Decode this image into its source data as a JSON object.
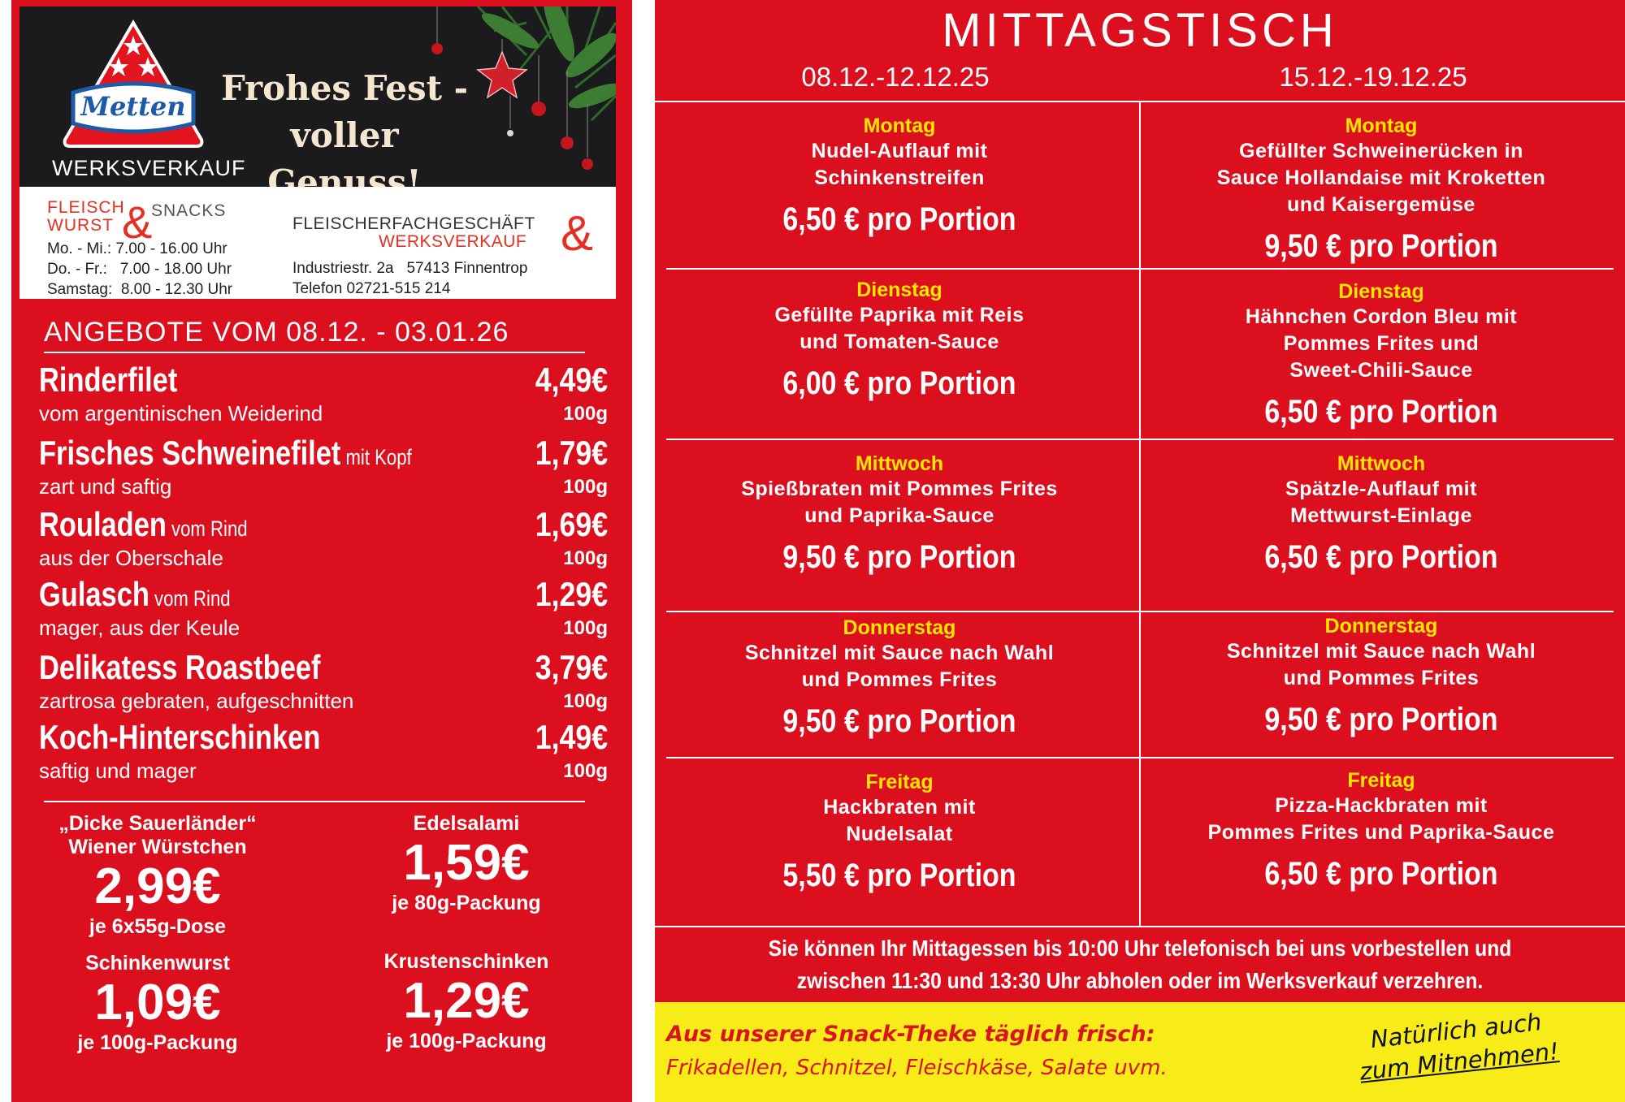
{
  "header": {
    "logo_text": "Metten",
    "logo_subtitle": "WERKSVERKAUF",
    "slogan_line1": "Frohes Fest -",
    "slogan_line2": "voller Genuss!",
    "fws_fleisch": "FLEISCH",
    "fws_wurst": "WURST",
    "fws_amp": "&",
    "fws_snacks": "SNACKS",
    "hours": [
      "Mo. - Mi.: 7.00 - 16.00 Uhr",
      "Do. - Fr.:   7.00 - 18.00 Uhr",
      "Samstag:  8.00 - 12.30 Uhr"
    ],
    "shop_line1": "FLEISCHERFACHGESCHÄFT",
    "shop_line2": "WERKSVERKAUF",
    "shop_amp": "&",
    "address": "Industriestr. 2a   57413 Finnentrop",
    "phone": "Telefon 02721-515 214"
  },
  "offers": {
    "heading": "ANGEBOTE VOM 08.12. - 03.01.26",
    "items": [
      {
        "name": "Rinderfilet",
        "extra": "",
        "desc": "vom argentinischen Weiderind",
        "price": "4,49€",
        "unit": "100g"
      },
      {
        "name": "Frisches Schweinefilet",
        "extra": " mit Kopf",
        "desc": "zart und saftig",
        "price": "1,79€",
        "unit": "100g"
      },
      {
        "name": "Rouladen",
        "extra": " vom Rind",
        "desc": "aus der Oberschale",
        "price": "1,69€",
        "unit": "100g"
      },
      {
        "name": "Gulasch",
        "extra": " vom Rind",
        "desc": "mager, aus der Keule",
        "price": "1,29€",
        "unit": "100g"
      },
      {
        "name": "Delikatess Roastbeef",
        "extra": "",
        "desc": "zartrosa gebraten, aufgeschnitten",
        "price": "3,79€",
        "unit": "100g"
      },
      {
        "name": "Koch-Hinterschinken",
        "extra": "",
        "desc": "saftig und mager",
        "price": "1,49€",
        "unit": "100g"
      }
    ],
    "specials": [
      {
        "title1": "„Dicke Sauerländer“",
        "title2": "Wiener Würstchen",
        "price": "2,99€",
        "unit": "je 6x55g-Dose"
      },
      {
        "title1": "Edelsalami",
        "title2": "",
        "price": "1,59€",
        "unit": "je 80g-Packung"
      },
      {
        "title1": "Schinkenwurst",
        "title2": "",
        "price": "1,09€",
        "unit": "je 100g-Packung"
      },
      {
        "title1": "Krustenschinken",
        "title2": "",
        "price": "1,29€",
        "unit": "je 100g-Packung"
      }
    ]
  },
  "mittagstisch": {
    "title": "MITTAGSTISCH",
    "weeks": [
      {
        "label": "08.12.-12.12.25",
        "days": [
          {
            "day": "Montag",
            "dish": [
              "Nudel-Auflauf mit",
              "Schinkenstreifen"
            ],
            "price": "6,50 € pro Portion"
          },
          {
            "day": "Dienstag",
            "dish": [
              "Gefüllte Paprika mit Reis",
              "und Tomaten-Sauce"
            ],
            "price": "6,00 € pro Portion"
          },
          {
            "day": "Mittwoch",
            "dish": [
              "Spießbraten mit Pommes Frites",
              "und Paprika-Sauce"
            ],
            "price": "9,50 € pro Portion"
          },
          {
            "day": "Donnerstag",
            "dish": [
              "Schnitzel mit Sauce nach Wahl",
              "und Pommes Frites"
            ],
            "price": "9,50 € pro Portion"
          },
          {
            "day": "Freitag",
            "dish": [
              "Hackbraten mit",
              "Nudelsalat"
            ],
            "price": "5,50 € pro Portion"
          }
        ]
      },
      {
        "label": "15.12.-19.12.25",
        "days": [
          {
            "day": "Montag",
            "dish": [
              "Gefüllter Schweinerücken in",
              "Sauce Hollandaise mit Kroketten",
              "und Kaisergemüse"
            ],
            "price": "9,50 € pro Portion"
          },
          {
            "day": "Dienstag",
            "dish": [
              "Hähnchen Cordon Bleu mit",
              "Pommes Frites und",
              "Sweet-Chili-Sauce"
            ],
            "price": "6,50 € pro Portion"
          },
          {
            "day": "Mittwoch",
            "dish": [
              "Spätzle-Auflauf mit",
              "Mettwurst-Einlage"
            ],
            "price": "6,50 € pro Portion"
          },
          {
            "day": "Donnerstag",
            "dish": [
              "Schnitzel mit Sauce nach Wahl",
              "und Pommes Frites"
            ],
            "price": "9,50 € pro Portion"
          },
          {
            "day": "Freitag",
            "dish": [
              "Pizza-Hackbraten mit",
              "Pommes Frites und Paprika-Sauce"
            ],
            "price": "6,50 € pro Portion"
          }
        ]
      }
    ],
    "note_line1": "Sie können Ihr Mittagessen bis 10:00 Uhr telefonisch bei uns vorbestellen und",
    "note_line2": "zwischen 11:30 und 13:30 Uhr abholen oder im Werksverkauf verzehren.",
    "snack_line1": "Aus unserer Snack-Theke täglich frisch:",
    "snack_line2": "Frikadellen, Schnitzel, Fleischkäse, Salate uvm.",
    "takeaway_line1": "Natürlich auch",
    "takeaway_line2": "zum Mitnehmen!"
  },
  "colors": {
    "red": "#dc0f1f",
    "yellow": "#ffe600",
    "white": "#ffffff",
    "dark": "#1b1b1d"
  }
}
